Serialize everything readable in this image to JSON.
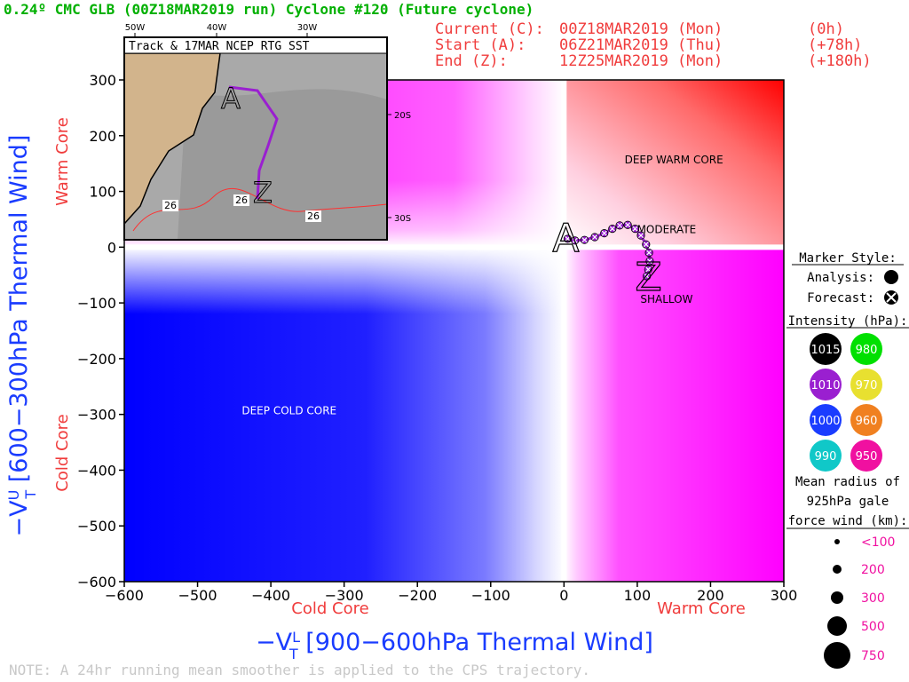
{
  "header": {
    "title": "0.24º CMC GLB (00Z18MAR2019 run) Cyclone #120 (Future cyclone)",
    "current_label": "Current (C):",
    "current_time": "00Z18MAR2019 (Mon)",
    "current_offset": "(0h)",
    "start_label": "Start (A):",
    "start_time": "06Z21MAR2019 (Thu)",
    "start_offset": "(+78h)",
    "end_label": "End (Z):",
    "end_time": "12Z25MAR2019 (Mon)",
    "end_offset": "(+180h)"
  },
  "legend": {
    "marker_style_title": "Marker Style:",
    "analysis_label": "Analysis:",
    "forecast_label": "Forecast:",
    "intensity_title": "Intensity (hPa):",
    "intensity_levels": [
      {
        "label": "1015",
        "color": "#000000"
      },
      {
        "label": "980",
        "color": "#00e000"
      },
      {
        "label": "1010",
        "color": "#9a1fd0"
      },
      {
        "label": "970",
        "color": "#e8e030"
      },
      {
        "label": "1000",
        "color": "#1a3cff"
      },
      {
        "label": "960",
        "color": "#f08020"
      },
      {
        "label": "990",
        "color": "#10c8c8"
      },
      {
        "label": "950",
        "color": "#f010a0"
      }
    ],
    "radius_title_1": "Mean radius of",
    "radius_title_2": "925hPa gale",
    "radius_title_3": "force wind (km):",
    "radius_levels": [
      "<100",
      "200",
      "300",
      "500",
      "750"
    ]
  },
  "inset": {
    "title": "Track & 17MAR NCEP RTG SST",
    "lon_labels": [
      "50W",
      "40W",
      "30W"
    ],
    "lat_labels": [
      "20S",
      "30S"
    ],
    "sst_labels": [
      "26",
      "26",
      "26"
    ]
  },
  "note": "NOTE: A 24hr running mean smoother is applied to the CPS trajectory.",
  "chart_data": {
    "type": "scatter",
    "title": "0.24º CMC GLB (00Z18MAR2019 run) Cyclone #120 (Future cyclone)",
    "xlabel": "-VT^L [900-600hPa Thermal Wind]",
    "ylabel": "-VT^U [600-300hPa Thermal Wind]",
    "x_label_lead": "−V",
    "x_label_tail": " [900−600hPa Thermal Wind]",
    "y_label_lead": "−V",
    "y_label_tail": " [600−300hPa Thermal Wind]",
    "label_sub": "T",
    "x_label_sup": "L",
    "y_label_sup": "U",
    "xlim": [
      -600,
      300
    ],
    "ylim": [
      -600,
      300
    ],
    "x_ticks": [
      -600,
      -500,
      -400,
      -300,
      -200,
      -100,
      0,
      100,
      200,
      300
    ],
    "y_ticks": [
      -600,
      -500,
      -400,
      -300,
      -200,
      -100,
      0,
      100,
      200,
      300
    ],
    "x_tick_labels": [
      "−600",
      "−500",
      "−400",
      "−300",
      "−200",
      "−100",
      "0",
      "100",
      "200",
      "300"
    ],
    "y_tick_labels": [
      "−600",
      "−500",
      "−400",
      "−300",
      "−200",
      "−100",
      "0",
      "100",
      "200",
      "300"
    ],
    "x_side_labels": {
      "left": "Cold Core",
      "right": "Warm Core"
    },
    "y_side_labels": {
      "bottom": "Cold Core",
      "top": "Warm Core"
    },
    "region_labels": [
      {
        "text": "DEEP WARM CORE",
        "x": 150,
        "y": 150
      },
      {
        "text": "DEEP COLD CORE",
        "x": -375,
        "y": -300
      },
      {
        "text": "MODERATE",
        "x": 140,
        "y": 25
      },
      {
        "text": "SHALLOW",
        "x": 140,
        "y": -100
      }
    ],
    "track": {
      "start_marker": "A",
      "end_marker": "Z",
      "color": "#9a1fd0",
      "points": [
        {
          "x": 5,
          "y": 15
        },
        {
          "x": 15,
          "y": 12
        },
        {
          "x": 28,
          "y": 13
        },
        {
          "x": 42,
          "y": 18
        },
        {
          "x": 55,
          "y": 25
        },
        {
          "x": 66,
          "y": 33
        },
        {
          "x": 76,
          "y": 39
        },
        {
          "x": 87,
          "y": 40
        },
        {
          "x": 97,
          "y": 33
        },
        {
          "x": 105,
          "y": 21
        },
        {
          "x": 112,
          "y": 5
        },
        {
          "x": 116,
          "y": -10
        },
        {
          "x": 117,
          "y": -25
        },
        {
          "x": 115,
          "y": -40
        },
        {
          "x": 113,
          "y": -52
        }
      ]
    }
  }
}
